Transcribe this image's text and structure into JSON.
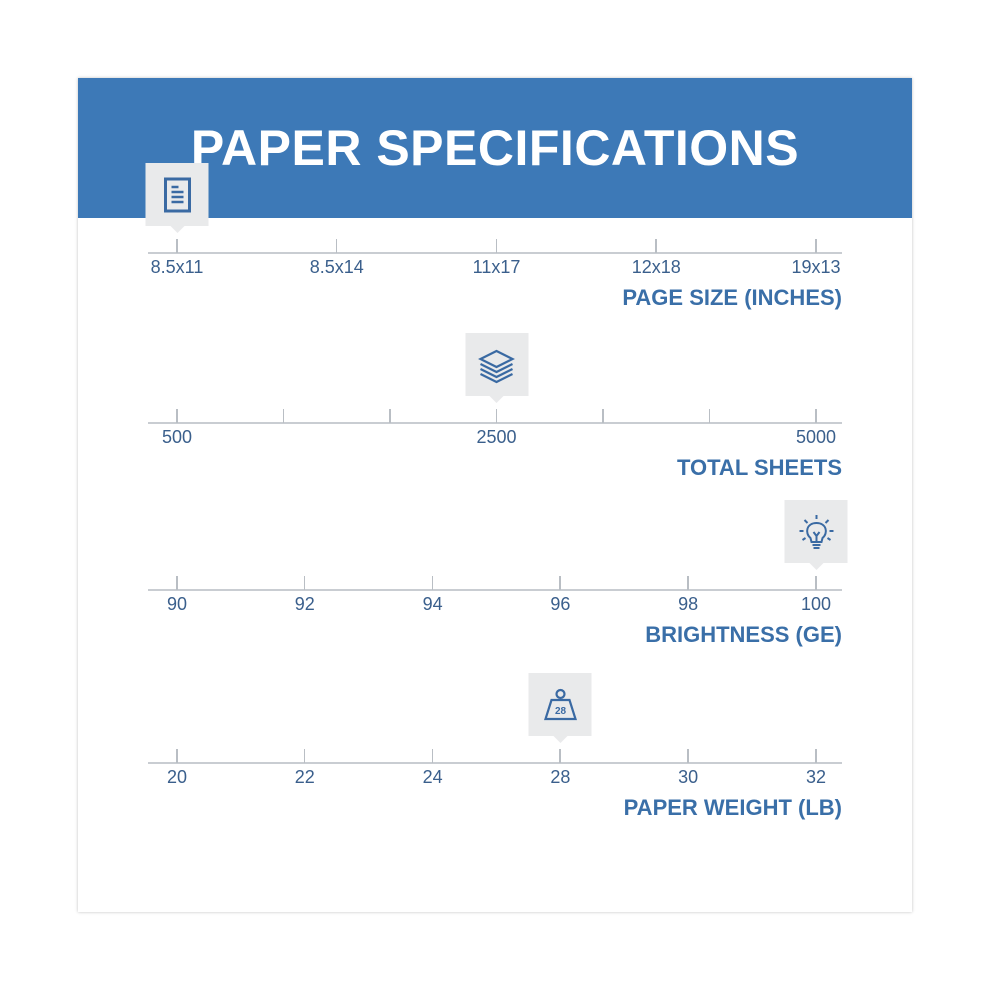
{
  "title": "PAPER SPECIFICATIONS",
  "accent_color": "#3d79b7",
  "scales": [
    {
      "title": "PAGE SIZE (INCHES)",
      "ticks": [
        "8.5x11",
        "8.5x14",
        "11x17",
        "12x18",
        "19x13"
      ],
      "minor_ticks": 0,
      "selected": "8.5x11",
      "icon": "document-icon"
    },
    {
      "title": "TOTAL SHEETS",
      "ticks": [
        "500",
        "",
        "",
        "2500",
        "",
        "",
        "5000"
      ],
      "minor_ticks": 0,
      "selected": "2500",
      "icon": "paper-stack-icon"
    },
    {
      "title": "BRIGHTNESS (GE)",
      "ticks": [
        "90",
        "92",
        "94",
        "96",
        "98",
        "100"
      ],
      "minor_ticks": 0,
      "selected": "100",
      "icon": "lightbulb-icon"
    },
    {
      "title": "PAPER WEIGHT (LB)",
      "ticks": [
        "20",
        "22",
        "24",
        "28",
        "30",
        "32"
      ],
      "minor_ticks": 0,
      "selected": "28",
      "icon": "weight-icon",
      "icon_text": "28"
    }
  ]
}
